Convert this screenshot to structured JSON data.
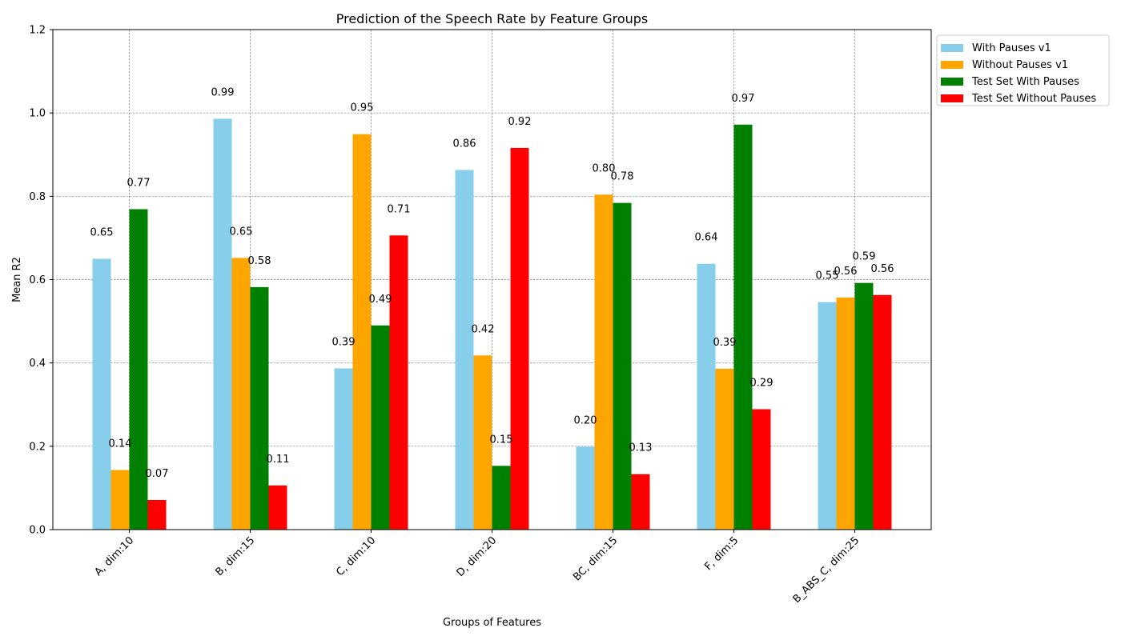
{
  "chart_data": {
    "type": "bar",
    "title": "Prediction of the Speech Rate by Feature Groups",
    "xlabel": "Groups of Features",
    "ylabel": "Mean R2",
    "ylim": [
      0,
      1.2
    ],
    "yticks": [
      0.0,
      0.2,
      0.4,
      0.6,
      0.8,
      1.0,
      1.2
    ],
    "ytick_labels": [
      "0.0",
      "0.2",
      "0.4",
      "0.6",
      "0.8",
      "1.0",
      "1.2"
    ],
    "grid": true,
    "legend_position": "outside-top-right",
    "categories": [
      "A, dim:10",
      "B, dim:15",
      "C, dim:10",
      "D, dim:20",
      "BC, dim:15",
      "F, dim:5",
      "B_ABS_C, dim:25"
    ],
    "series": [
      {
        "name": "With Pauses v1",
        "color": "#87ceeb",
        "values": [
          0.65,
          0.986,
          0.387,
          0.863,
          0.199,
          0.638,
          0.546
        ],
        "labels": [
          "0.65",
          "0.99",
          "0.39",
          "0.86",
          "0.20",
          "0.64",
          "0.55"
        ]
      },
      {
        "name": "Without Pauses v1",
        "color": "#ffa500",
        "values": [
          0.143,
          0.652,
          0.949,
          0.418,
          0.804,
          0.386,
          0.557
        ],
        "labels": [
          "0.14",
          "0.65",
          "0.95",
          "0.42",
          "0.80",
          "0.39",
          "0.56"
        ]
      },
      {
        "name": "Test Set With Pauses",
        "color": "#008000",
        "values": [
          0.769,
          0.582,
          0.49,
          0.153,
          0.784,
          0.972,
          0.592
        ],
        "labels": [
          "0.77",
          "0.58",
          "0.49",
          "0.15",
          "0.78",
          "0.97",
          "0.59"
        ]
      },
      {
        "name": "Test Set Without Pauses",
        "color": "#ff0000",
        "values": [
          0.071,
          0.106,
          0.706,
          0.916,
          0.133,
          0.289,
          0.563
        ],
        "labels": [
          "0.07",
          "0.11",
          "0.71",
          "0.92",
          "0.13",
          "0.29",
          "0.56"
        ]
      }
    ]
  }
}
